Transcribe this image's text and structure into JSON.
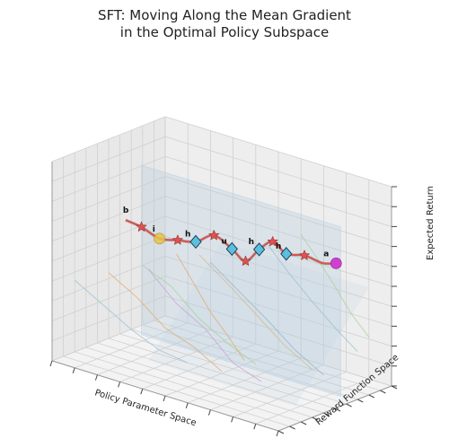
{
  "title": {
    "line1": "SFT: Moving Along the Mean Gradient",
    "line2": "in the Optimal Policy Subspace"
  },
  "chart_data": {
    "type": "line",
    "projection": "3d",
    "grid": true,
    "axes": {
      "x_label": "Policy Parameter Space",
      "y_label": "Reward Function Space",
      "z_label": "Expected Return"
    },
    "colors": {
      "main_path": "#d9534f",
      "star_marker": "#d9534f",
      "diamond_marker": "#5bc0de",
      "start_marker": "#e6c44a",
      "end_marker": "#d13fd1",
      "subspace_plane": "#b7cde0",
      "faint_traces": [
        "#9bbfd6",
        "#e3a86b",
        "#a8cf9a",
        "#c9a0cf",
        "#d6b88a",
        "#9ab3c9"
      ]
    },
    "point_labels": {
      "start": "b",
      "first": "i",
      "mids": [
        "h",
        "u",
        "h",
        "h"
      ],
      "end": "a"
    },
    "main_path": [
      {
        "x": 0.05,
        "y": 0.55,
        "z": 0.6
      },
      {
        "x": 0.12,
        "y": 0.55,
        "z": 0.59
      },
      {
        "x": 0.2,
        "y": 0.55,
        "z": 0.56
      },
      {
        "x": 0.28,
        "y": 0.55,
        "z": 0.58
      },
      {
        "x": 0.36,
        "y": 0.55,
        "z": 0.6
      },
      {
        "x": 0.44,
        "y": 0.55,
        "z": 0.66
      },
      {
        "x": 0.52,
        "y": 0.55,
        "z": 0.62
      },
      {
        "x": 0.58,
        "y": 0.55,
        "z": 0.58
      },
      {
        "x": 0.64,
        "y": 0.55,
        "z": 0.66
      },
      {
        "x": 0.7,
        "y": 0.55,
        "z": 0.72
      },
      {
        "x": 0.76,
        "y": 0.55,
        "z": 0.68
      },
      {
        "x": 0.84,
        "y": 0.55,
        "z": 0.7
      },
      {
        "x": 0.92,
        "y": 0.55,
        "z": 0.69
      },
      {
        "x": 0.98,
        "y": 0.55,
        "z": 0.71
      }
    ],
    "stars_index": [
      1,
      3,
      5,
      7,
      9,
      11
    ],
    "diamonds_index": [
      4,
      6,
      8,
      10
    ],
    "traces": [
      [
        [
          0.05,
          0.1,
          0.4
        ],
        [
          0.15,
          0.15,
          0.3
        ],
        [
          0.25,
          0.2,
          0.2
        ],
        [
          0.35,
          0.25,
          0.12
        ],
        [
          0.45,
          0.3,
          0.08
        ]
      ],
      [
        [
          0.15,
          0.2,
          0.45
        ],
        [
          0.25,
          0.25,
          0.35
        ],
        [
          0.35,
          0.3,
          0.22
        ],
        [
          0.45,
          0.35,
          0.15
        ],
        [
          0.55,
          0.4,
          0.05
        ]
      ],
      [
        [
          0.25,
          0.3,
          0.5
        ],
        [
          0.35,
          0.35,
          0.42
        ],
        [
          0.45,
          0.4,
          0.28
        ],
        [
          0.55,
          0.45,
          0.18
        ],
        [
          0.65,
          0.5,
          0.1
        ]
      ],
      [
        [
          0.35,
          0.15,
          0.55
        ],
        [
          0.45,
          0.2,
          0.4
        ],
        [
          0.55,
          0.25,
          0.3
        ],
        [
          0.65,
          0.3,
          0.15
        ],
        [
          0.75,
          0.35,
          0.08
        ]
      ],
      [
        [
          0.45,
          0.4,
          0.6
        ],
        [
          0.55,
          0.45,
          0.48
        ],
        [
          0.65,
          0.5,
          0.35
        ],
        [
          0.75,
          0.55,
          0.22
        ],
        [
          0.85,
          0.6,
          0.12
        ]
      ],
      [
        [
          0.55,
          0.3,
          0.62
        ],
        [
          0.65,
          0.35,
          0.5
        ],
        [
          0.75,
          0.4,
          0.38
        ],
        [
          0.85,
          0.45,
          0.25
        ],
        [
          0.95,
          0.5,
          0.15
        ]
      ],
      [
        [
          0.65,
          0.6,
          0.68
        ],
        [
          0.72,
          0.65,
          0.55
        ],
        [
          0.8,
          0.7,
          0.42
        ],
        [
          0.88,
          0.75,
          0.3
        ],
        [
          0.95,
          0.8,
          0.2
        ]
      ],
      [
        [
          0.2,
          0.7,
          0.45
        ],
        [
          0.3,
          0.65,
          0.35
        ],
        [
          0.4,
          0.6,
          0.25
        ],
        [
          0.5,
          0.55,
          0.18
        ],
        [
          0.6,
          0.5,
          0.1
        ]
      ],
      [
        [
          0.7,
          0.8,
          0.7
        ],
        [
          0.76,
          0.82,
          0.6
        ],
        [
          0.82,
          0.85,
          0.48
        ],
        [
          0.88,
          0.88,
          0.35
        ],
        [
          0.95,
          0.9,
          0.25
        ]
      ]
    ]
  }
}
